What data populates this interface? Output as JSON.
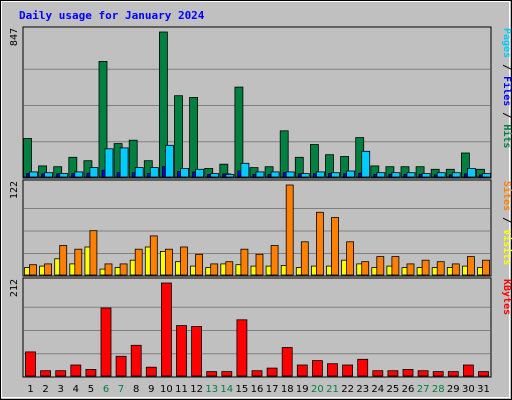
{
  "chart_data": {
    "type": "bar",
    "title": "Daily usage for January 2024",
    "categories": [
      "1",
      "2",
      "3",
      "4",
      "5",
      "6",
      "7",
      "8",
      "9",
      "10",
      "11",
      "12",
      "13",
      "14",
      "15",
      "16",
      "17",
      "18",
      "19",
      "20",
      "21",
      "22",
      "23",
      "24",
      "25",
      "26",
      "27",
      "28",
      "29",
      "30",
      "31"
    ],
    "weekend_days": [
      "6",
      "7",
      "13",
      "14",
      "20",
      "21",
      "27",
      "28"
    ],
    "panels": [
      {
        "id": "hits-panel",
        "ymax": 847,
        "ymax_label": "847",
        "legend": [
          {
            "text": "Pages",
            "color": "#00ccff"
          },
          {
            "text": " / ",
            "color": "#000000"
          },
          {
            "text": "Files",
            "color": "#0000ff"
          },
          {
            "text": " / ",
            "color": "#000000"
          },
          {
            "text": "Hits",
            "color": "#008040"
          }
        ],
        "series": [
          {
            "name": "Hits",
            "color": "#008040",
            "values": [
              225,
              65,
              60,
              115,
              95,
              675,
              195,
              215,
              95,
              847,
              475,
              465,
              50,
              75,
              525,
              55,
              60,
              270,
              115,
              190,
              130,
              120,
              230,
              65,
              60,
              60,
              60,
              45,
              45,
              140,
              45
            ]
          },
          {
            "name": "Files",
            "color": "#0000ff",
            "values": [
              20,
              18,
              18,
              20,
              22,
              40,
              25,
              25,
              20,
              60,
              32,
              30,
              15,
              18,
              35,
              15,
              15,
              25,
              18,
              20,
              20,
              18,
              22,
              15,
              15,
              15,
              15,
              12,
              12,
              18,
              12
            ]
          },
          {
            "name": "Pages",
            "color": "#00ccff",
            "values": [
              30,
              25,
              20,
              30,
              55,
              165,
              170,
              55,
              55,
              185,
              50,
              45,
              20,
              15,
              80,
              30,
              30,
              30,
              20,
              30,
              25,
              35,
              150,
              25,
              25,
              25,
              20,
              25,
              25,
              50,
              20
            ]
          }
        ]
      },
      {
        "id": "visits-panel",
        "ymax": 122,
        "ymax_label": "122",
        "legend": [
          {
            "text": "Sites",
            "color": "#ff8000"
          },
          {
            "text": " / ",
            "color": "#000000"
          },
          {
            "text": "Visits",
            "color": "#ffff00"
          }
        ],
        "series": [
          {
            "name": "Visits",
            "color": "#ffff00",
            "values": [
              10,
              12,
              22,
              15,
              38,
              8,
              10,
              20,
              38,
              32,
              18,
              12,
              10,
              15,
              14,
              12,
              12,
              13,
              10,
              12,
              12,
              20,
              15,
              10,
              12,
              10,
              10,
              10,
              10,
              12,
              10
            ]
          },
          {
            "name": "Sites",
            "color": "#ff8000",
            "values": [
              14,
              15,
              40,
              35,
              60,
              15,
              15,
              35,
              53,
              35,
              38,
              28,
              15,
              18,
              35,
              28,
              40,
              122,
              45,
              85,
              78,
              45,
              18,
              25,
              25,
              15,
              20,
              18,
              15,
              25,
              20
            ]
          }
        ]
      },
      {
        "id": "kbytes-panel",
        "ymax": 212,
        "ymax_label": "212",
        "legend": [
          {
            "text": "KBytes",
            "color": "#ff0000"
          }
        ],
        "series": [
          {
            "name": "KBytes",
            "color": "#ff0000",
            "values": [
              55,
              12,
              12,
              25,
              15,
              155,
              45,
              70,
              20,
              212,
              115,
              113,
              10,
              10,
              128,
              12,
              18,
              65,
              25,
              35,
              28,
              25,
              38,
              12,
              12,
              15,
              12,
              10,
              10,
              25,
              10
            ]
          }
        ]
      }
    ]
  }
}
